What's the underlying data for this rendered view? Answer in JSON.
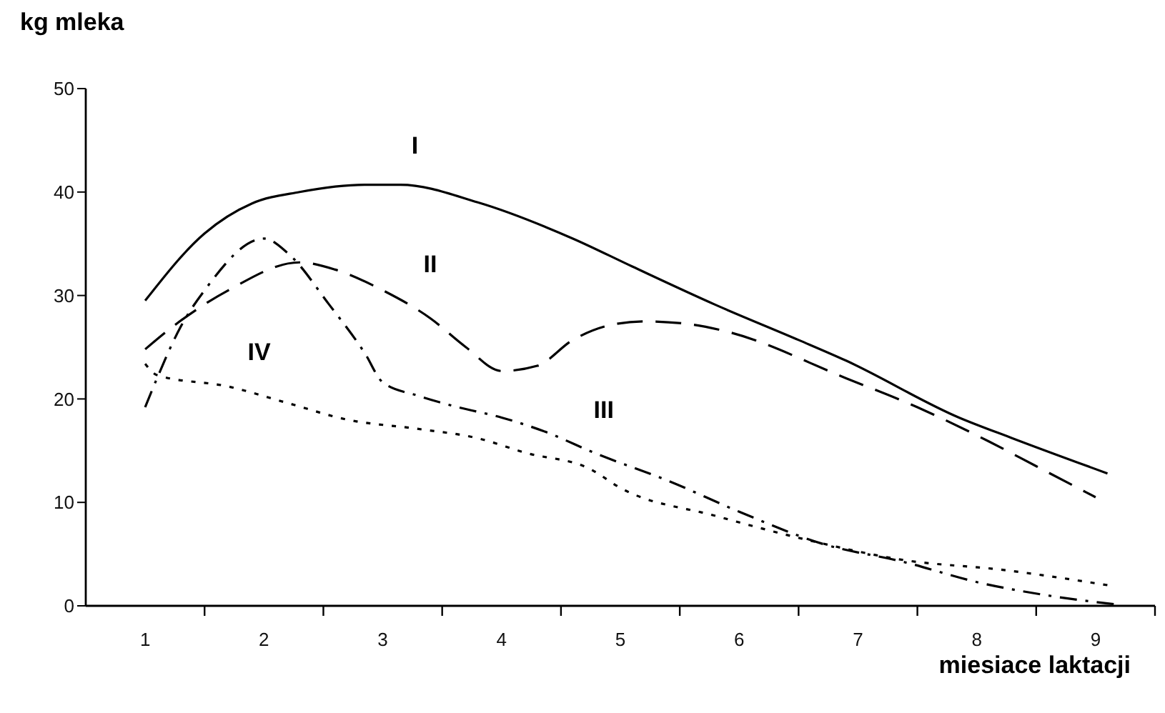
{
  "chart_data": {
    "type": "line",
    "ylabel": "kg mleka",
    "xlabel": "miesiace laktacji",
    "xlim": [
      0.5,
      9.5
    ],
    "xticks": [
      {
        "value": 1,
        "label": "1"
      },
      {
        "value": 1.5,
        "label": null
      },
      {
        "value": 2,
        "label": "2"
      },
      {
        "value": 2.5,
        "label": null
      },
      {
        "value": 3,
        "label": "3"
      },
      {
        "value": 3.5,
        "label": null
      },
      {
        "value": 4,
        "label": "4"
      },
      {
        "value": 4.5,
        "label": null
      },
      {
        "value": 5,
        "label": "5"
      },
      {
        "value": 5.5,
        "label": null
      },
      {
        "value": 6,
        "label": "6"
      },
      {
        "value": 6.5,
        "label": null
      },
      {
        "value": 7,
        "label": "7"
      },
      {
        "value": 7.5,
        "label": null
      },
      {
        "value": 8,
        "label": "8"
      },
      {
        "value": 8.5,
        "label": null
      },
      {
        "value": 9,
        "label": "9"
      },
      {
        "value": 9.5,
        "label": null
      }
    ],
    "ylim": [
      0,
      50
    ],
    "yticks": [
      0,
      10,
      20,
      30,
      40,
      50
    ],
    "series": [
      {
        "name": "I",
        "color": "#000000",
        "line_style": "solid",
        "x": [
          1,
          1.5,
          1.9,
          2.3,
          2.85,
          3.15,
          3.8,
          4.6,
          5.1,
          5.8,
          6.5,
          6.9,
          7.85,
          8.3,
          9.1
        ],
        "values": [
          29.5,
          36,
          38.9,
          40,
          40.7,
          40.7,
          39,
          35.5,
          32.8,
          29.1,
          25.7,
          23.7,
          18.2,
          16.2,
          12.8
        ]
      },
      {
        "name": "II",
        "color": "#000000",
        "line_style": "dashed",
        "x": [
          1,
          1.2,
          1.7,
          2.3,
          2.6,
          3,
          3.4,
          3.7,
          4,
          4.3,
          4.6,
          4.9,
          5.2,
          5.6,
          5.9,
          6.9,
          7.5,
          8.1,
          8.5,
          9
        ],
        "values": [
          24.8,
          26.7,
          30.5,
          33.2,
          32.5,
          30.5,
          27.8,
          25,
          22.7,
          23.2,
          25.7,
          27.1,
          27.5,
          27.2,
          26.5,
          22,
          19.2,
          15.9,
          13.5,
          10.5
        ]
      },
      {
        "name": "III",
        "color": "#000000",
        "line_style": "dashdot",
        "x": [
          1,
          1.1,
          1.3,
          1.5,
          2,
          2.2,
          2.55,
          2.85,
          3,
          3.3,
          3.6,
          4,
          4.35,
          4.8,
          5.4,
          6,
          6.7,
          7.4,
          8,
          8.6,
          9.2
        ],
        "values": [
          19.2,
          22,
          27,
          30.5,
          35.5,
          34.1,
          29.1,
          24.4,
          21.6,
          20.3,
          19.3,
          18.2,
          16.9,
          14.7,
          12.1,
          9.1,
          6,
          4.2,
          2.3,
          1,
          0.1
        ]
      },
      {
        "name": "IV",
        "color": "#000000",
        "line_style": "dotted",
        "x": [
          1,
          1.1,
          1.7,
          2.2,
          2.7,
          3.3,
          3.8,
          4.2,
          4.75,
          5,
          5.8,
          6.6,
          7.4,
          8.2,
          9.1
        ],
        "values": [
          23.4,
          22.3,
          21.2,
          19.6,
          18,
          17.1,
          16.2,
          14.8,
          13.2,
          11.4,
          8.7,
          6.3,
          4.4,
          3.5,
          2
        ]
      }
    ]
  }
}
